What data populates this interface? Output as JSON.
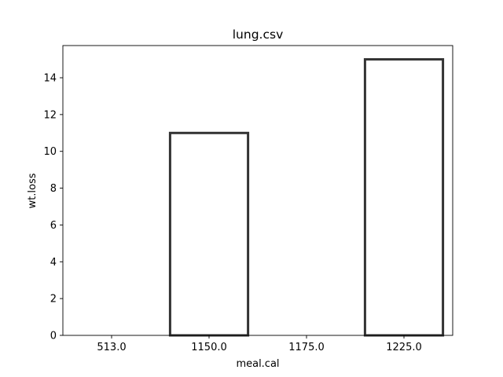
{
  "chart_data": {
    "type": "bar",
    "title": "lung.csv",
    "xlabel": "meal.cal",
    "ylabel": "wt.loss",
    "categories": [
      "513.0",
      "1150.0",
      "1175.0",
      "1225.0"
    ],
    "values": [
      0,
      11,
      null,
      15
    ],
    "ylim": [
      0,
      15.75
    ],
    "yticks": [
      0,
      2,
      4,
      6,
      8,
      10,
      12,
      14
    ],
    "grid": false,
    "colors": {
      "bar_fill": "#ffffff",
      "bar_edge": "#333333",
      "axis": "#000000"
    }
  }
}
